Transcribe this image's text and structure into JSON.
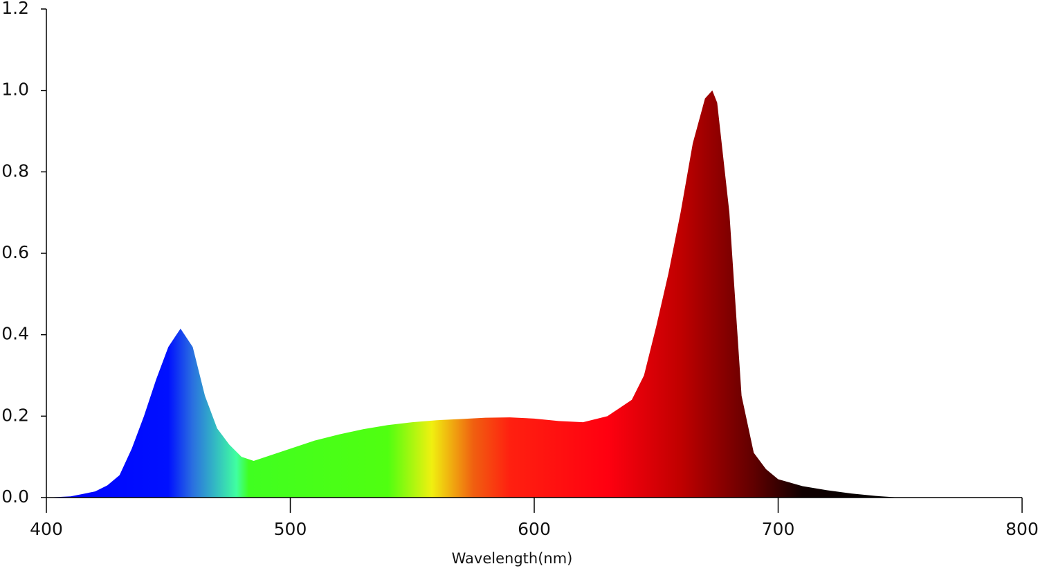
{
  "chart_data": {
    "type": "area",
    "x_label": "Wavelength(nm)",
    "x": [
      400,
      410,
      420,
      425,
      430,
      435,
      440,
      445,
      450,
      455,
      460,
      465,
      470,
      475,
      480,
      485,
      490,
      500,
      510,
      520,
      530,
      540,
      550,
      560,
      570,
      580,
      590,
      600,
      610,
      620,
      630,
      640,
      645,
      650,
      655,
      660,
      665,
      670,
      673,
      675,
      680,
      685,
      690,
      695,
      700,
      710,
      720,
      730,
      740,
      750
    ],
    "values": [
      0,
      0.003,
      0.015,
      0.03,
      0.055,
      0.12,
      0.2,
      0.29,
      0.37,
      0.415,
      0.37,
      0.25,
      0.17,
      0.13,
      0.1,
      0.09,
      0.1,
      0.12,
      0.14,
      0.155,
      0.168,
      0.178,
      0.185,
      0.19,
      0.193,
      0.196,
      0.197,
      0.194,
      0.188,
      0.185,
      0.2,
      0.24,
      0.3,
      0.42,
      0.55,
      0.7,
      0.87,
      0.98,
      1.0,
      0.97,
      0.7,
      0.25,
      0.11,
      0.07,
      0.045,
      0.028,
      0.018,
      0.01,
      0.004,
      0
    ],
    "xlim": [
      400,
      800
    ],
    "xticks": [
      400,
      500,
      600,
      700,
      800
    ],
    "ylim": [
      0,
      1.2
    ],
    "yticks": [
      {
        "value": 0,
        "label": "0.0"
      },
      {
        "value": 0.2,
        "label": "0.2"
      },
      {
        "value": 0.4,
        "label": "0.4"
      },
      {
        "value": 0.6,
        "label": "0.6"
      },
      {
        "value": 0.8,
        "label": "0.8"
      },
      {
        "value": 1,
        "label": "1.0"
      },
      {
        "value": 1.2,
        "label": "1.2"
      }
    ],
    "gradient": [
      {
        "at": 400,
        "color": "#0000ff"
      },
      {
        "at": 450,
        "color": "#0010ff"
      },
      {
        "at": 460,
        "color": "#2a70e0"
      },
      {
        "at": 470,
        "color": "#34c0c0"
      },
      {
        "at": 478,
        "color": "#40ffa0"
      },
      {
        "at": 483,
        "color": "#40ff20"
      },
      {
        "at": 540,
        "color": "#50ff10"
      },
      {
        "at": 558,
        "color": "#f0f010"
      },
      {
        "at": 575,
        "color": "#f06010"
      },
      {
        "at": 590,
        "color": "#ff2010"
      },
      {
        "at": 630,
        "color": "#ff0010"
      },
      {
        "at": 660,
        "color": "#c00000"
      },
      {
        "at": 690,
        "color": "#600000"
      },
      {
        "at": 710,
        "color": "#100000"
      },
      {
        "at": 750,
        "color": "#000000"
      }
    ]
  }
}
